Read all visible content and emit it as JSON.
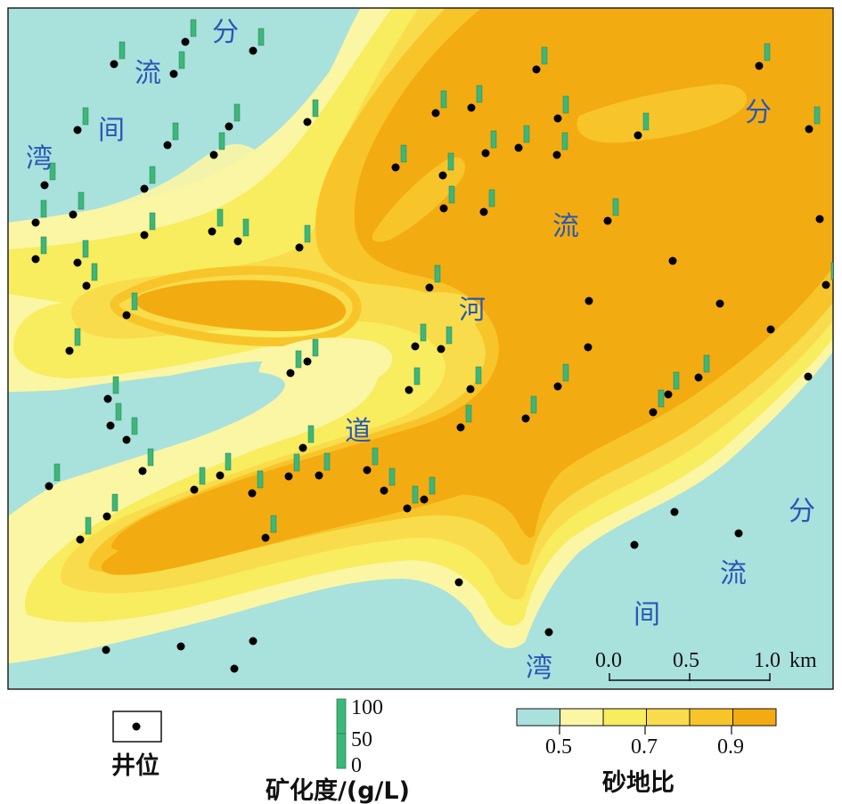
{
  "map": {
    "area_labels": {
      "interchannel_nw": [
        "分",
        "流",
        "间",
        "湾"
      ],
      "interchannel_se": [
        "分",
        "流",
        "间",
        "湾"
      ],
      "channel": [
        "流",
        "河",
        "道"
      ],
      "ne_fen": "分"
    },
    "scale_bar": {
      "ticks": [
        "0.0",
        "0.5",
        "1.0"
      ],
      "unit": "km"
    }
  },
  "legend": {
    "well": {
      "label": "井位"
    },
    "salinity": {
      "title": "矿化度/(g/L)",
      "ticks": [
        "100",
        "50",
        "0"
      ]
    },
    "sand_ratio": {
      "title": "砂地比",
      "ticks": [
        "0.5",
        "0.7",
        "0.9"
      ],
      "colors": [
        "#a9e1dd",
        "#fbf6a3",
        "#f8ec5f",
        "#f9dc4b",
        "#f7c52a",
        "#f3ab12"
      ]
    }
  },
  "colors": {
    "bar_green": "#3cb77a",
    "well_black": "#000000",
    "frame": "#222222"
  },
  "wells_with_salinity": [
    [
      128,
      72,
      50
    ],
    [
      195,
      83,
      50
    ],
    [
      208,
      47,
      50
    ],
    [
      284,
      57,
      50
    ],
    [
      87,
      146,
      50
    ],
    [
      188,
      163,
      50
    ],
    [
      240,
      174,
      50
    ],
    [
      257,
      142,
      50
    ],
    [
      162,
      212,
      50
    ],
    [
      50,
      208,
      50
    ],
    [
      40,
      250,
      50
    ],
    [
      82,
      241,
      50
    ],
    [
      40,
      291,
      50
    ],
    [
      87,
      295,
      50
    ],
    [
      97,
      321,
      50
    ],
    [
      162,
      264,
      50
    ],
    [
      238,
      260,
      50
    ],
    [
      267,
      271,
      50
    ],
    [
      336,
      278,
      50
    ],
    [
      345,
      137,
      50
    ],
    [
      444,
      188,
      50
    ],
    [
      489,
      127,
      50
    ],
    [
      529,
      121,
      50
    ],
    [
      497,
      197,
      50
    ],
    [
      498,
      234,
      50
    ],
    [
      543,
      238,
      50
    ],
    [
      545,
      172,
      50
    ],
    [
      582,
      166,
      50
    ],
    [
      625,
      174,
      50
    ],
    [
      626,
      133,
      50
    ],
    [
      602,
      78,
      50
    ],
    [
      482,
      323,
      50
    ],
    [
      466,
      389,
      50
    ],
    [
      495,
      392,
      50
    ],
    [
      459,
      438,
      50
    ],
    [
      528,
      437,
      50
    ],
    [
      517,
      480,
      50
    ],
    [
      590,
      470,
      50
    ],
    [
      626,
      434,
      50
    ],
    [
      682,
      248,
      50
    ],
    [
      716,
      152,
      50
    ],
    [
      852,
      74,
      50
    ],
    [
      908,
      145,
      50
    ],
    [
      927,
      320,
      50
    ],
    [
      733,
      463,
      50
    ],
    [
      750,
      443,
      50
    ],
    [
      784,
      424,
      50
    ],
    [
      142,
      354,
      50
    ],
    [
      78,
      394,
      50
    ],
    [
      121,
      448,
      50
    ],
    [
      124,
      478,
      50
    ],
    [
      142,
      494,
      50
    ],
    [
      160,
      529,
      50
    ],
    [
      55,
      546,
      50
    ],
    [
      218,
      550,
      50
    ],
    [
      247,
      534,
      50
    ],
    [
      283,
      554,
      50
    ],
    [
      324,
      535,
      50
    ],
    [
      340,
      503,
      50
    ],
    [
      358,
      534,
      50
    ],
    [
      412,
      528,
      50
    ],
    [
      431,
      551,
      50
    ],
    [
      457,
      571,
      50
    ],
    [
      476,
      561,
      50
    ],
    [
      298,
      604,
      50
    ],
    [
      120,
      580,
      50
    ],
    [
      90,
      606,
      50
    ],
    [
      326,
      419,
      50
    ],
    [
      345,
      406,
      50
    ]
  ],
  "wells_no_salinity": [
    [
      920,
      246
    ],
    [
      755,
      293
    ],
    [
      661,
      338
    ],
    [
      660,
      390
    ],
    [
      808,
      341
    ],
    [
      865,
      370
    ],
    [
      907,
      423
    ],
    [
      757,
      575
    ],
    [
      829,
      599
    ],
    [
      712,
      612
    ],
    [
      515,
      654
    ],
    [
      616,
      710
    ],
    [
      119,
      730
    ],
    [
      203,
      726
    ],
    [
      284,
      720
    ],
    [
      263,
      751
    ]
  ]
}
